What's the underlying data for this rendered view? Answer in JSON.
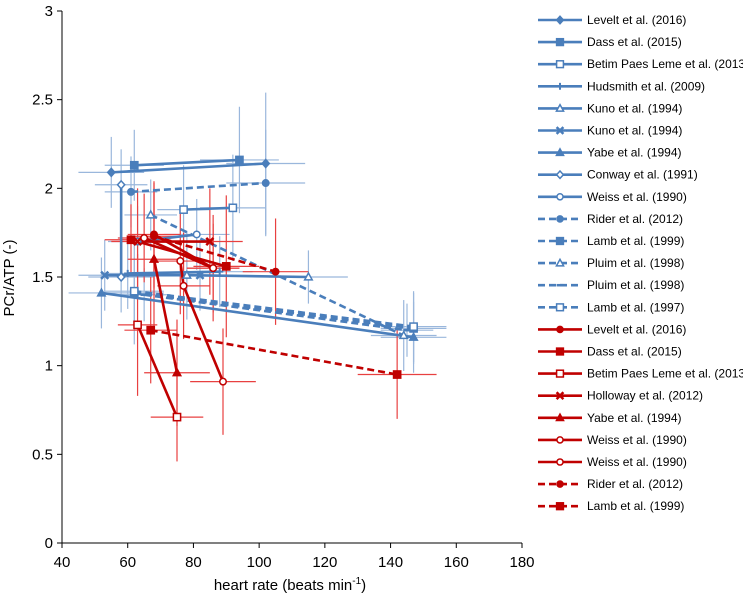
{
  "chart_data": {
    "type": "scatter",
    "title": "",
    "xlabel": "heart rate (beats min",
    "xlabel_sup": "-1",
    "xlabel_close": ")",
    "ylabel": "PCr/ATP (-)",
    "xlim": [
      40,
      180
    ],
    "ylim": [
      0,
      3
    ],
    "xticks": [
      40,
      60,
      80,
      100,
      120,
      140,
      160,
      180
    ],
    "yticks": [
      0,
      0.5,
      1,
      1.5,
      2,
      2.5,
      3
    ],
    "ytick_labels": [
      "0",
      "0.5",
      "1",
      "1.5",
      "2",
      "2.5",
      "3"
    ],
    "colors": {
      "blue": "#4a7ebb",
      "blue_err": "#9ab7dc",
      "red": "#c00000",
      "red_err": "#e84040"
    },
    "series": [
      {
        "name": "Levelt et al. (2016)",
        "color": "blue",
        "dash": false,
        "marker": "diamond",
        "points": [
          {
            "x": 55,
            "y": 2.09,
            "xe": 10,
            "ye": 0.2
          },
          {
            "x": 102,
            "y": 2.14,
            "xe": 12,
            "ye": 0.4
          }
        ]
      },
      {
        "name": "Dass et al. (2015)",
        "color": "blue",
        "dash": false,
        "marker": "square",
        "points": [
          {
            "x": 62,
            "y": 2.13,
            "xe": 9,
            "ye": 0.2
          },
          {
            "x": 94,
            "y": 2.16,
            "xe": 12,
            "ye": 0.3
          }
        ]
      },
      {
        "name": "Betim Paes Leme et al. (2013)",
        "color": "blue",
        "dash": false,
        "marker": "square-open",
        "points": [
          {
            "x": 77,
            "y": 1.88,
            "xe": 8,
            "ye": 0.25
          },
          {
            "x": 92,
            "y": 1.89,
            "xe": 10,
            "ye": 0.3
          }
        ]
      },
      {
        "name": "Hudsmith et al. (2009)",
        "color": "blue",
        "dash": false,
        "marker": "plus",
        "points": [
          {
            "x": 60,
            "y": 1.52,
            "xe": 8,
            "ye": 0.2
          },
          {
            "x": 88,
            "y": 1.53,
            "xe": 10,
            "ye": 0.2
          }
        ]
      },
      {
        "name": "Kuno et al. (1994)",
        "color": "blue",
        "dash": false,
        "marker": "triangle-open",
        "points": [
          {
            "x": 78,
            "y": 1.51,
            "xe": 10,
            "ye": 0.25
          },
          {
            "x": 115,
            "y": 1.5,
            "xe": 12,
            "ye": 0.15
          }
        ]
      },
      {
        "name": "Kuno et al. (1994)",
        "color": "blue",
        "dash": false,
        "marker": "x",
        "points": [
          {
            "x": 53,
            "y": 1.51,
            "xe": 8,
            "ye": 0.2
          },
          {
            "x": 82,
            "y": 1.51,
            "xe": 10,
            "ye": 0.2
          }
        ]
      },
      {
        "name": "Yabe et al. (1994)",
        "color": "blue",
        "dash": false,
        "marker": "triangle",
        "points": [
          {
            "x": 52,
            "y": 1.41,
            "xe": 10,
            "ye": 0.2
          },
          {
            "x": 147,
            "y": 1.16,
            "xe": 10,
            "ye": 0.2
          }
        ]
      },
      {
        "name": "Conway et al. (1991)",
        "color": "blue",
        "dash": false,
        "marker": "diamond-open",
        "points": [
          {
            "x": 58,
            "y": 1.5,
            "xe": 10,
            "ye": 0.2
          },
          {
            "x": 58,
            "y": 2.02,
            "xe": 8,
            "ye": 0.2
          }
        ]
      },
      {
        "name": "Weiss et al. (1990)",
        "color": "blue",
        "dash": false,
        "marker": "circle-open",
        "points": [
          {
            "x": 63,
            "y": 1.7,
            "xe": 9,
            "ye": 0.2
          },
          {
            "x": 81,
            "y": 1.74,
            "xe": 10,
            "ye": 0.2
          }
        ]
      },
      {
        "name": "Rider et al. (2012)",
        "color": "blue",
        "dash": true,
        "marker": "circle",
        "points": [
          {
            "x": 61,
            "y": 1.98,
            "xe": 8,
            "ye": 0.2
          },
          {
            "x": 102,
            "y": 2.03,
            "xe": 12,
            "ye": 0.3
          }
        ]
      },
      {
        "name": "Lamb et al. (1999)",
        "color": "blue",
        "dash": true,
        "marker": "square",
        "points": [
          {
            "x": 62,
            "y": 1.41,
            "xe": 9,
            "ye": 0.2
          },
          {
            "x": 147,
            "y": 1.21,
            "xe": 10,
            "ye": 0.2
          }
        ]
      },
      {
        "name": "Pluim et al. (1998)",
        "color": "blue",
        "dash": true,
        "marker": "triangle-open",
        "points": [
          {
            "x": 67,
            "y": 1.85,
            "xe": 8,
            "ye": 0.2
          },
          {
            "x": 144,
            "y": 1.17,
            "xe": 10,
            "ye": 0.2
          }
        ]
      },
      {
        "name": "Pluim et al. (1998)",
        "color": "blue",
        "dash": true,
        "marker": "dash",
        "points": [
          {
            "x": 65,
            "y": 1.4,
            "xe": 8,
            "ye": 0.15
          },
          {
            "x": 145,
            "y": 1.2,
            "xe": 8,
            "ye": 0.15
          }
        ]
      },
      {
        "name": "Lamb et al. (1997)",
        "color": "blue",
        "dash": true,
        "marker": "square-open",
        "points": [
          {
            "x": 62,
            "y": 1.42,
            "xe": 9,
            "ye": 0.3
          },
          {
            "x": 147,
            "y": 1.22,
            "xe": 10,
            "ye": 0.2
          }
        ]
      },
      {
        "name": "Levelt et al. (2016)",
        "color": "red",
        "dash": false,
        "marker": "circle",
        "points": [
          {
            "x": 68,
            "y": 1.74,
            "xe": 8,
            "ye": 0.3
          },
          {
            "x": 86,
            "y": 1.55,
            "xe": 8,
            "ye": 0.3
          }
        ]
      },
      {
        "name": "Dass et al. (2015)",
        "color": "red",
        "dash": false,
        "marker": "square",
        "points": [
          {
            "x": 61,
            "y": 1.71,
            "xe": 8,
            "ye": 0.2
          },
          {
            "x": 90,
            "y": 1.56,
            "xe": 10,
            "ye": 0.4
          }
        ]
      },
      {
        "name": "Betim Paes Leme et al. (2013)",
        "color": "red",
        "dash": false,
        "marker": "square-open",
        "points": [
          {
            "x": 63,
            "y": 1.23,
            "xe": 6,
            "ye": 0.4
          },
          {
            "x": 75,
            "y": 0.71,
            "xe": 8,
            "ye": 0.25
          }
        ]
      },
      {
        "name": "Holloway et al. (2012)",
        "color": "red",
        "dash": false,
        "marker": "x",
        "points": [
          {
            "x": 63,
            "y": 1.7,
            "xe": 8,
            "ye": 0.3
          },
          {
            "x": 85,
            "y": 1.7,
            "xe": 10,
            "ye": 0.3
          }
        ]
      },
      {
        "name": "Yabe et al. (1994)",
        "color": "red",
        "dash": false,
        "marker": "triangle",
        "points": [
          {
            "x": 68,
            "y": 1.6,
            "xe": 8,
            "ye": 0.4
          },
          {
            "x": 75,
            "y": 0.96,
            "xe": 10,
            "ye": 0.3
          }
        ]
      },
      {
        "name": "Weiss et al. (1990)",
        "color": "red",
        "dash": false,
        "marker": "circle-open",
        "points": [
          {
            "x": 65,
            "y": 1.72,
            "xe": 8,
            "ye": 0.25
          },
          {
            "x": 86,
            "y": 1.55,
            "xe": 8,
            "ye": 0.25
          }
        ]
      },
      {
        "name": "Weiss et al. (1990)",
        "color": "red",
        "dash": false,
        "marker": "circle-open",
        "points": [
          {
            "x": 76,
            "y": 1.59,
            "xe": 8,
            "ye": 0.3
          },
          {
            "x": 77,
            "y": 1.45,
            "xe": 8,
            "ye": 0.3
          },
          {
            "x": 89,
            "y": 0.91,
            "xe": 10,
            "ye": 0.3
          }
        ]
      },
      {
        "name": "Rider et al. (2012)",
        "color": "red",
        "dash": true,
        "marker": "circle",
        "points": [
          {
            "x": 68,
            "y": 1.73,
            "xe": 8,
            "ye": 0.3
          },
          {
            "x": 105,
            "y": 1.53,
            "xe": 10,
            "ye": 0.3
          }
        ]
      },
      {
        "name": "Lamb et al. (1999)",
        "color": "red",
        "dash": true,
        "marker": "square",
        "points": [
          {
            "x": 67,
            "y": 1.2,
            "xe": 8,
            "ye": 0.3
          },
          {
            "x": 142,
            "y": 0.95,
            "xe": 12,
            "ye": 0.25
          }
        ]
      }
    ]
  }
}
